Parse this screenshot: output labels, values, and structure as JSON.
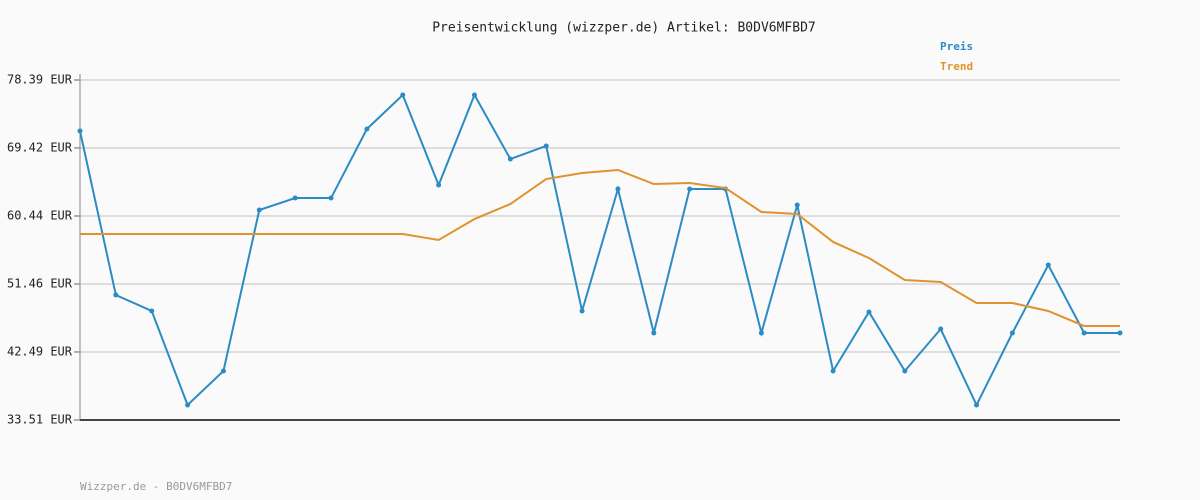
{
  "chart_data": {
    "type": "line",
    "title": "Preisentwicklung (wizzper.de) Artikel: B0DV6MFBD7",
    "footer": "Wizzper.de - B0DV6MFBD7",
    "categories": [
      null,
      null,
      null,
      null,
      null,
      null,
      null,
      null,
      null,
      null,
      null,
      null,
      null,
      null,
      null,
      null,
      null,
      null,
      null,
      null,
      null,
      null,
      null,
      null,
      null,
      null,
      null,
      null,
      null,
      null
    ],
    "series": [
      {
        "name": "Preis",
        "color": "#2b8cc4",
        "markers": true,
        "values": [
          71.66,
          50.01,
          47.9,
          35.49,
          39.98,
          61.23,
          62.81,
          62.81,
          71.92,
          76.41,
          64.53,
          76.41,
          67.96,
          69.68,
          47.9,
          64.0,
          45.0,
          64.0,
          64.0,
          45.0,
          61.89,
          39.98,
          47.77,
          39.98,
          45.52,
          35.49,
          45.0,
          53.97,
          45.0,
          45.0
        ]
      },
      {
        "name": "Trend",
        "color": "#e0922f",
        "markers": false,
        "values": [
          58.06,
          58.06,
          58.06,
          58.06,
          58.06,
          58.06,
          58.06,
          58.06,
          58.06,
          58.06,
          57.27,
          60.04,
          62.02,
          65.32,
          66.12,
          66.51,
          64.66,
          64.8,
          64.13,
          60.97,
          60.7,
          57.01,
          54.89,
          51.99,
          51.72,
          48.95,
          48.95,
          47.9,
          45.92,
          45.92
        ]
      }
    ],
    "ylim": [
      33.51,
      78.39
    ],
    "yticks": [
      {
        "value": 33.51,
        "label": "33.51 EUR"
      },
      {
        "value": 42.49,
        "label": "42.49 EUR"
      },
      {
        "value": 51.46,
        "label": "51.46 EUR"
      },
      {
        "value": 60.44,
        "label": "60.44 EUR"
      },
      {
        "value": 69.42,
        "label": "69.42 EUR"
      },
      {
        "value": 78.39,
        "label": "78.39 EUR"
      }
    ],
    "grid": true,
    "legend": "top-right"
  }
}
